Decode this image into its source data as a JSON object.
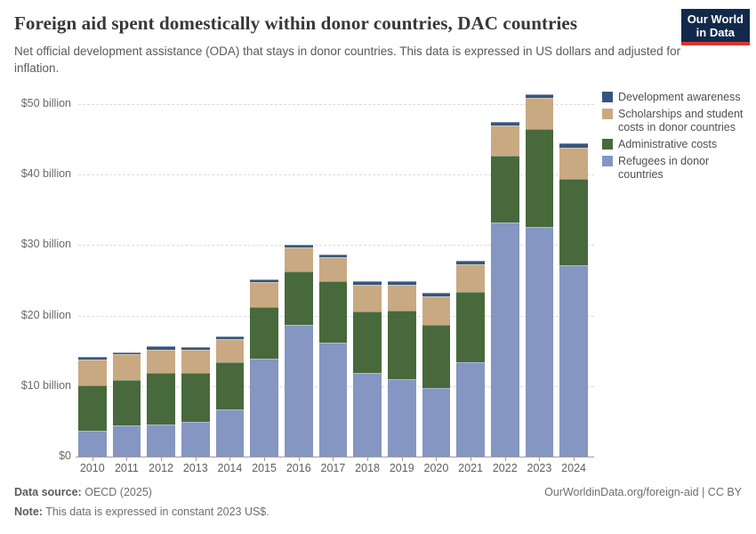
{
  "header": {
    "title": "Foreign aid spent domestically within donor countries, DAC countries",
    "subtitle": "Net official development assistance (ODA) that stays in donor countries. This data is expressed in US dollars and adjusted for inflation.",
    "logo": {
      "line1": "Our World",
      "line2": "in Data"
    }
  },
  "colors": {
    "logo_bg": "#12294b",
    "logo_accent": "#d8352e",
    "refugees": "#8496c1",
    "administrative": "#48693c",
    "scholarships": "#c9a982",
    "development_awareness": "#34567e",
    "gridline": "#dcdcdc",
    "axis": "#9e9e9e"
  },
  "chart_data": {
    "type": "bar",
    "stacked": true,
    "title": "Foreign aid spent domestically within donor countries, DAC countries",
    "xlabel": "",
    "ylabel": "",
    "unit": "constant 2023 US$, billions",
    "ylim": [
      0,
      52
    ],
    "grid": true,
    "legend_position": "right",
    "categories": [
      "2010",
      "2011",
      "2012",
      "2013",
      "2014",
      "2015",
      "2016",
      "2017",
      "2018",
      "2019",
      "2020",
      "2021",
      "2022",
      "2023",
      "2024"
    ],
    "series": [
      {
        "key": "refugees",
        "name": "Refugees in donor countries",
        "color": "#8496c1",
        "values": [
          3.7,
          4.4,
          4.5,
          4.9,
          6.7,
          13.9,
          18.7,
          16.2,
          11.9,
          11.0,
          9.7,
          13.4,
          33.2,
          32.5,
          27.1
        ]
      },
      {
        "key": "administrative-costs",
        "name": "Administrative costs",
        "color": "#48693c",
        "values": [
          6.4,
          6.5,
          7.3,
          6.9,
          6.7,
          7.3,
          7.5,
          8.7,
          8.7,
          9.7,
          9.0,
          10.0,
          9.5,
          13.9,
          12.3
        ]
      },
      {
        "key": "scholarships",
        "name": "Scholarships and student costs in donor countries",
        "color": "#c9a982",
        "values": [
          3.6,
          3.6,
          3.4,
          3.4,
          3.3,
          3.5,
          3.4,
          3.4,
          3.8,
          3.7,
          4.0,
          3.9,
          4.2,
          4.5,
          4.4
        ]
      },
      {
        "key": "development-awareness",
        "name": "Development awareness",
        "color": "#34567e",
        "values": [
          0.4,
          0.3,
          0.4,
          0.3,
          0.3,
          0.4,
          0.4,
          0.4,
          0.5,
          0.5,
          0.5,
          0.4,
          0.5,
          0.5,
          0.6
        ]
      }
    ],
    "totals": [
      14.1,
      14.8,
      15.6,
      15.5,
      17.0,
      25.1,
      30.0,
      28.7,
      24.9,
      24.9,
      23.2,
      27.7,
      47.4,
      51.4,
      44.4
    ],
    "yticks": [
      {
        "value": 0,
        "label": "$0"
      },
      {
        "value": 10,
        "label": "$10 billion"
      },
      {
        "value": 20,
        "label": "$20 billion"
      },
      {
        "value": 30,
        "label": "$30 billion"
      },
      {
        "value": 40,
        "label": "$40 billion"
      },
      {
        "value": 50,
        "label": "$50 billion"
      }
    ],
    "legend": [
      {
        "key": "development-awareness",
        "label": "Development awareness",
        "color": "#34567e"
      },
      {
        "key": "scholarships",
        "label": "Scholarships and student costs in donor countries",
        "color": "#c9a982"
      },
      {
        "key": "administrative-costs",
        "label": "Administrative costs",
        "color": "#48693c"
      },
      {
        "key": "refugees",
        "label": "Refugees in donor countries",
        "color": "#8496c1"
      }
    ]
  },
  "footer": {
    "data_source_label": "Data source:",
    "data_source_value": "OECD (2025)",
    "note_label": "Note:",
    "note_value": "This data is expressed in constant 2023 US$.",
    "url": "OurWorldinData.org/foreign-aid",
    "separator": " | ",
    "license": "CC BY"
  }
}
